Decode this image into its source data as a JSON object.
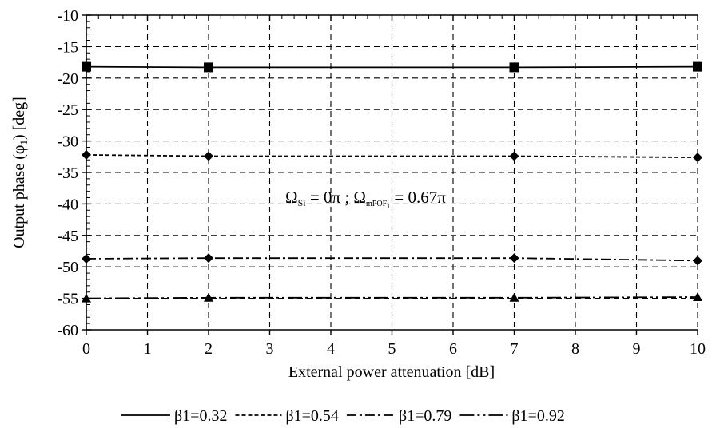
{
  "chart_data": {
    "type": "line",
    "title": "",
    "xlabel": "External power attenuation [dB]",
    "ylabel": "Output phase (φ1) [deg]",
    "xlim": [
      0,
      10
    ],
    "ylim": [
      -60,
      -10
    ],
    "x_ticks": [
      0,
      1,
      2,
      3,
      4,
      5,
      6,
      7,
      8,
      9,
      10
    ],
    "y_ticks": [
      -60,
      -55,
      -50,
      -45,
      -40,
      -35,
      -30,
      -25,
      -20,
      -15,
      -10
    ],
    "grid": true,
    "legend_position": "bottom",
    "annotation": "ΩSi = 0π ; ΩmPOF1 = 0.67π",
    "series": [
      {
        "name": "β1=0.32",
        "marker": "square",
        "dash": "solid",
        "x": [
          0,
          2,
          7,
          10
        ],
        "y": [
          -18.2,
          -18.3,
          -18.3,
          -18.2
        ]
      },
      {
        "name": "β1=0.54",
        "marker": "diamond",
        "dash": "dashed",
        "x": [
          0,
          2,
          7,
          10
        ],
        "y": [
          -32.2,
          -32.4,
          -32.4,
          -32.6
        ]
      },
      {
        "name": "β1=0.79",
        "marker": "diamond",
        "dash": "dashdot",
        "x": [
          0,
          2,
          7,
          10
        ],
        "y": [
          -48.7,
          -48.6,
          -48.6,
          -49.0
        ]
      },
      {
        "name": "β1=0.92",
        "marker": "triangle",
        "dash": "longdashdotdot",
        "x": [
          0,
          2,
          7,
          10
        ],
        "y": [
          -55.0,
          -54.9,
          -54.9,
          -54.8
        ]
      }
    ]
  }
}
